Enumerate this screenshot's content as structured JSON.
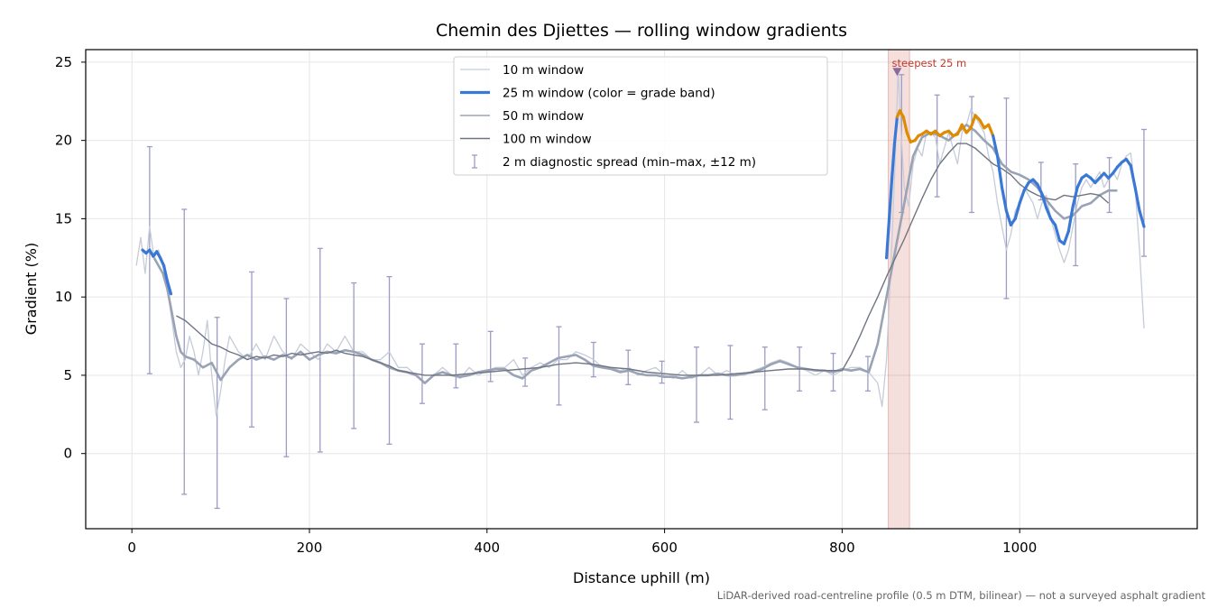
{
  "chart_data": {
    "type": "line",
    "title": "Chemin des Djiettes — rolling window gradients",
    "xlabel": "Distance uphill (m)",
    "ylabel": "Gradient (%)",
    "xlim": [
      -52,
      1200
    ],
    "ylim": [
      -4.8,
      25.8
    ],
    "xticks": [
      0,
      200,
      400,
      600,
      800,
      1000
    ],
    "yticks": [
      0,
      5,
      10,
      15,
      20,
      25
    ],
    "grid": true,
    "legend_position": "top-center",
    "footnote": "LiDAR-derived road-centreline profile (0.5 m DTM, bilinear) — not a surveyed asphalt gradient",
    "highlight": {
      "x_range": [
        852,
        876
      ],
      "marker": {
        "x": 862,
        "y": 24.4
      },
      "label": "steepest 25 m",
      "color": "#c0392b"
    },
    "grade_band_colors": {
      "below_20": "#3a78d6",
      "20_to_25": "#e08a00"
    },
    "series": [
      {
        "name": "10 m window",
        "color": "#c5ccd8",
        "x": [
          5,
          10,
          15,
          20,
          25,
          30,
          35,
          40,
          45,
          50,
          55,
          60,
          65,
          70,
          75,
          80,
          85,
          90,
          95,
          100,
          105,
          110,
          120,
          130,
          140,
          150,
          160,
          170,
          180,
          190,
          200,
          210,
          220,
          230,
          240,
          250,
          260,
          270,
          280,
          290,
          300,
          310,
          320,
          330,
          340,
          350,
          360,
          370,
          380,
          390,
          400,
          410,
          420,
          430,
          440,
          450,
          460,
          470,
          480,
          490,
          500,
          510,
          520,
          530,
          540,
          550,
          560,
          570,
          580,
          590,
          600,
          610,
          620,
          630,
          640,
          650,
          660,
          670,
          680,
          690,
          700,
          710,
          720,
          730,
          740,
          750,
          760,
          770,
          780,
          790,
          800,
          810,
          820,
          830,
          840,
          845,
          850,
          855,
          860,
          863,
          866,
          870,
          875,
          880,
          885,
          890,
          895,
          900,
          905,
          910,
          915,
          920,
          925,
          930,
          935,
          940,
          945,
          950,
          955,
          960,
          965,
          970,
          975,
          980,
          985,
          990,
          995,
          1000,
          1005,
          1010,
          1015,
          1020,
          1025,
          1030,
          1035,
          1040,
          1045,
          1050,
          1055,
          1060,
          1065,
          1070,
          1075,
          1080,
          1085,
          1090,
          1095,
          1100,
          1105,
          1110,
          1115,
          1120,
          1125,
          1130,
          1135,
          1140
        ],
        "y": [
          12.0,
          13.8,
          11.5,
          14.5,
          12.5,
          13.0,
          12.0,
          10.5,
          8.5,
          6.5,
          5.5,
          6.0,
          7.5,
          6.5,
          5.0,
          6.5,
          8.5,
          5.0,
          2.4,
          4.0,
          6.0,
          7.5,
          6.5,
          6.0,
          7.0,
          6.0,
          7.5,
          6.5,
          6.0,
          7.0,
          6.5,
          6.0,
          7.0,
          6.5,
          7.5,
          6.5,
          6.5,
          6.0,
          6.0,
          6.5,
          5.5,
          5.5,
          5.0,
          4.5,
          5.0,
          5.5,
          5.0,
          4.8,
          5.5,
          5.0,
          5.3,
          5.5,
          5.5,
          6.0,
          5.0,
          5.5,
          5.8,
          5.5,
          6.0,
          6.0,
          6.5,
          6.3,
          6.0,
          5.5,
          5.5,
          5.3,
          5.5,
          5.0,
          5.3,
          5.5,
          5.0,
          4.8,
          5.3,
          4.8,
          5.0,
          5.5,
          5.0,
          5.3,
          5.0,
          5.0,
          5.3,
          5.5,
          5.8,
          6.0,
          5.8,
          5.5,
          5.3,
          5.0,
          5.3,
          5.0,
          5.3,
          5.5,
          5.5,
          5.2,
          4.5,
          3.0,
          6.0,
          12.0,
          19.0,
          24.5,
          21.0,
          17.0,
          15.8,
          18.5,
          19.5,
          19.0,
          20.5,
          20.5,
          20.2,
          18.5,
          19.5,
          20.5,
          19.5,
          18.5,
          20.5,
          21.0,
          22.0,
          21.5,
          21.0,
          20.5,
          19.0,
          18.0,
          16.0,
          14.5,
          13.0,
          14.0,
          15.5,
          16.0,
          17.0,
          16.5,
          16.0,
          15.0,
          16.0,
          16.5,
          15.0,
          14.0,
          13.0,
          12.2,
          13.0,
          14.5,
          16.0,
          17.0,
          17.5,
          17.0,
          17.5,
          18.0,
          17.0,
          17.5,
          18.0,
          17.5,
          18.5,
          19.0,
          19.2,
          17.0,
          13.0,
          8.0
        ]
      },
      {
        "name": "25 m window (color = grade band)",
        "color": "#3a78d6",
        "x": [
          12,
          16,
          20,
          24,
          28,
          32,
          36,
          40,
          44,
          850,
          853,
          856,
          859,
          862,
          865,
          869,
          873,
          877,
          882,
          886,
          890,
          895,
          900,
          905,
          910,
          915,
          920,
          925,
          930,
          935,
          940,
          945,
          950,
          955,
          960,
          965,
          970,
          975,
          980,
          985,
          990,
          995,
          1000,
          1005,
          1010,
          1015,
          1020,
          1025,
          1030,
          1035,
          1040,
          1045,
          1050,
          1055,
          1060,
          1065,
          1070,
          1075,
          1080,
          1085,
          1090,
          1095,
          1100,
          1105,
          1110,
          1115,
          1120,
          1125,
          1130,
          1135,
          1140
        ],
        "y": [
          13.0,
          12.8,
          13.0,
          12.6,
          12.9,
          12.5,
          12.0,
          11.0,
          10.2,
          12.5,
          15.0,
          17.5,
          19.8,
          21.5,
          21.9,
          21.5,
          20.5,
          19.9,
          20.0,
          20.3,
          20.4,
          20.6,
          20.4,
          20.6,
          20.3,
          20.5,
          20.6,
          20.3,
          20.4,
          21.0,
          20.5,
          20.8,
          21.6,
          21.3,
          20.8,
          21.0,
          20.3,
          19.0,
          17.0,
          15.5,
          14.6,
          15.0,
          16.0,
          16.8,
          17.3,
          17.5,
          17.2,
          16.6,
          15.7,
          15.0,
          14.6,
          13.6,
          13.4,
          14.2,
          15.8,
          17.0,
          17.6,
          17.8,
          17.6,
          17.3,
          17.6,
          17.9,
          17.6,
          17.9,
          18.3,
          18.6,
          18.8,
          18.4,
          17.0,
          15.5,
          14.5
        ]
      },
      {
        "name": "50 m window",
        "color": "#9aa3b5",
        "x": [
          25,
          30,
          35,
          40,
          45,
          50,
          55,
          60,
          70,
          80,
          90,
          100,
          110,
          120,
          130,
          140,
          150,
          160,
          170,
          180,
          190,
          200,
          210,
          220,
          230,
          240,
          250,
          260,
          270,
          280,
          290,
          300,
          310,
          320,
          330,
          340,
          350,
          360,
          370,
          380,
          390,
          400,
          410,
          420,
          430,
          440,
          450,
          460,
          470,
          480,
          490,
          500,
          510,
          520,
          530,
          540,
          550,
          560,
          570,
          580,
          590,
          600,
          610,
          620,
          630,
          640,
          650,
          660,
          670,
          680,
          690,
          700,
          710,
          720,
          730,
          740,
          750,
          760,
          770,
          780,
          790,
          800,
          810,
          820,
          830,
          840,
          850,
          860,
          870,
          880,
          890,
          900,
          910,
          920,
          930,
          940,
          950,
          960,
          970,
          980,
          990,
          1000,
          1010,
          1020,
          1030,
          1040,
          1050,
          1060,
          1070,
          1080,
          1090,
          1100,
          1110
        ],
        "y": [
          12.5,
          12.0,
          11.5,
          10.5,
          9.0,
          7.5,
          6.5,
          6.2,
          6.0,
          5.5,
          5.8,
          4.7,
          5.5,
          6.0,
          6.3,
          6.0,
          6.2,
          6.0,
          6.3,
          6.1,
          6.5,
          6.0,
          6.3,
          6.5,
          6.4,
          6.6,
          6.5,
          6.3,
          6.0,
          5.8,
          5.5,
          5.3,
          5.2,
          5.0,
          4.5,
          5.0,
          5.2,
          5.0,
          4.9,
          5.0,
          5.2,
          5.3,
          5.4,
          5.4,
          5.0,
          4.8,
          5.3,
          5.5,
          5.8,
          6.1,
          6.2,
          6.3,
          6.0,
          5.6,
          5.5,
          5.4,
          5.2,
          5.3,
          5.1,
          5.0,
          5.0,
          4.9,
          4.9,
          4.8,
          4.9,
          5.0,
          5.0,
          5.1,
          5.0,
          5.0,
          5.1,
          5.2,
          5.4,
          5.7,
          5.9,
          5.7,
          5.5,
          5.4,
          5.3,
          5.3,
          5.2,
          5.4,
          5.3,
          5.4,
          5.2,
          7.0,
          10.0,
          13.0,
          16.0,
          19.0,
          20.2,
          20.5,
          20.3,
          20.0,
          20.5,
          21.0,
          20.6,
          20.0,
          19.5,
          18.5,
          18.0,
          17.8,
          17.5,
          17.0,
          16.2,
          15.5,
          15.0,
          15.2,
          15.8,
          16.0,
          16.5,
          16.8,
          16.8
        ]
      },
      {
        "name": "100 m window",
        "color": "#6e7482",
        "x": [
          50,
          60,
          70,
          80,
          90,
          100,
          110,
          120,
          130,
          140,
          150,
          160,
          170,
          180,
          190,
          200,
          210,
          220,
          230,
          240,
          250,
          260,
          270,
          280,
          290,
          300,
          310,
          320,
          330,
          340,
          350,
          360,
          380,
          400,
          420,
          440,
          460,
          480,
          500,
          520,
          540,
          560,
          580,
          600,
          620,
          640,
          660,
          680,
          700,
          720,
          740,
          760,
          780,
          800,
          810,
          820,
          830,
          840,
          850,
          860,
          870,
          880,
          890,
          900,
          910,
          920,
          930,
          940,
          950,
          960,
          970,
          980,
          990,
          1000,
          1010,
          1020,
          1030,
          1040,
          1050,
          1060,
          1070,
          1080,
          1090,
          1100
        ],
        "y": [
          8.8,
          8.5,
          8.0,
          7.5,
          7.0,
          6.8,
          6.5,
          6.3,
          6.0,
          6.2,
          6.1,
          6.3,
          6.2,
          6.4,
          6.3,
          6.4,
          6.5,
          6.4,
          6.6,
          6.4,
          6.3,
          6.2,
          6.0,
          5.8,
          5.6,
          5.3,
          5.2,
          5.1,
          5.0,
          5.0,
          5.0,
          5.0,
          5.1,
          5.2,
          5.3,
          5.4,
          5.5,
          5.7,
          5.8,
          5.7,
          5.5,
          5.4,
          5.2,
          5.1,
          5.0,
          5.0,
          5.0,
          5.1,
          5.2,
          5.3,
          5.4,
          5.4,
          5.3,
          5.3,
          6.3,
          7.5,
          8.8,
          10.0,
          11.3,
          12.5,
          13.7,
          15.0,
          16.3,
          17.5,
          18.5,
          19.2,
          19.8,
          19.8,
          19.5,
          19.0,
          18.5,
          18.2,
          17.8,
          17.2,
          16.8,
          16.5,
          16.3,
          16.2,
          16.5,
          16.4,
          16.5,
          16.6,
          16.5,
          16.0
        ]
      },
      {
        "name": "2 m diagnostic spread (min–max, ±12 m)",
        "color": "#9c9cc4",
        "type": "errorbar",
        "x": [
          20,
          59,
          96,
          135,
          174,
          212,
          250,
          290,
          327,
          365,
          404,
          443,
          481,
          520,
          559,
          597,
          636,
          674,
          713,
          752,
          790,
          829,
          867,
          907,
          946,
          985,
          1024,
          1063,
          1101,
          1140
        ],
        "lo": [
          5.1,
          -2.6,
          -3.5,
          1.7,
          -0.2,
          0.1,
          1.6,
          0.6,
          3.2,
          4.2,
          4.6,
          4.3,
          3.1,
          4.9,
          4.4,
          4.5,
          2.0,
          2.2,
          2.8,
          4.0,
          4.0,
          4.0,
          15.4,
          16.4,
          15.4,
          9.9,
          16.2,
          12.0,
          15.4,
          12.6
        ],
        "hi": [
          19.6,
          15.6,
          8.7,
          11.6,
          9.9,
          13.1,
          10.9,
          11.3,
          7.0,
          7.0,
          7.8,
          6.1,
          8.1,
          7.1,
          6.6,
          5.9,
          6.8,
          6.9,
          6.8,
          6.8,
          6.4,
          6.2,
          24.2,
          22.9,
          22.8,
          22.7,
          18.6,
          18.5,
          18.9,
          20.7
        ]
      }
    ]
  }
}
